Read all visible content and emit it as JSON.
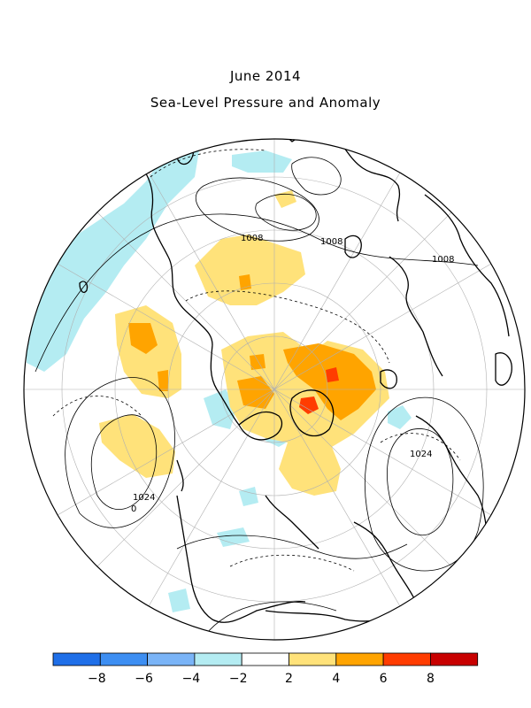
{
  "title": "June 2014",
  "subtitle": "Sea-Level Pressure and Anomaly",
  "contour_labels": {
    "c1008_a": "1008",
    "c1008_b": "1008",
    "c1008_c": "1008",
    "c1024_a": "1024",
    "c1024_b": "1024",
    "zero": "0"
  },
  "colorbar": {
    "tick_labels": [
      "-8",
      "-6",
      "-4",
      "-2",
      "2",
      "4",
      "6",
      "8"
    ],
    "colors": [
      "#1f6fe8",
      "#3d8ef2",
      "#7ab4f7",
      "#b4ecf2",
      "#ffffff",
      "#ffe27a",
      "#ffa400",
      "#ff3c00",
      "#c80000"
    ]
  },
  "colors": {
    "positive_light": "#ffe27a",
    "positive_mid": "#ffa400",
    "positive_strong": "#ff3c00",
    "negative_light": "#b4ecf2",
    "coast": "#000000",
    "grid": "#b0b0b0"
  }
}
